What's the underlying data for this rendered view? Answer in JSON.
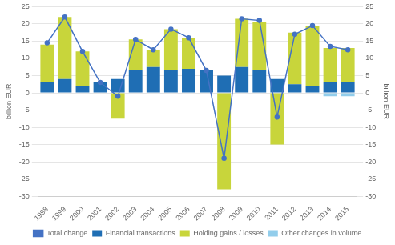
{
  "chart_data": {
    "type": "bar",
    "stacked": true,
    "categories": [
      "1998",
      "1999",
      "2000",
      "2001",
      "2002",
      "2003",
      "2004",
      "2005",
      "2006",
      "2007",
      "2008",
      "2009",
      "2010",
      "2011",
      "2012",
      "2013",
      "2014",
      "2015"
    ],
    "series": [
      {
        "name": "Financial transactions",
        "color": "#1f6eb4",
        "values": [
          3.0,
          4.0,
          2.0,
          3.0,
          4.0,
          6.5,
          7.5,
          6.5,
          7.0,
          6.5,
          5.0,
          7.5,
          6.5,
          4.0,
          2.5,
          2.0,
          3.0,
          3.0
        ]
      },
      {
        "name": "Holding gains / losses",
        "color": "#c8d53b",
        "values": [
          11.0,
          18.0,
          10.0,
          0.0,
          -7.5,
          9.0,
          5.0,
          12.0,
          9.0,
          0.0,
          -28.0,
          14.0,
          14.0,
          -15.0,
          15.0,
          17.5,
          10.0,
          10.0
        ]
      },
      {
        "name": "Other changes in volume",
        "color": "#92cdeb",
        "values": [
          0.0,
          0.0,
          0.0,
          0.0,
          0.0,
          0.0,
          0.0,
          0.0,
          0.0,
          0.0,
          0.0,
          0.0,
          0.0,
          0.0,
          0.0,
          0.0,
          -1.0,
          -1.0
        ]
      },
      {
        "name": "Total change",
        "type": "line",
        "color": "#4472c4",
        "marker": "circle",
        "values": [
          14.5,
          22.0,
          12.0,
          3.0,
          -1.0,
          15.5,
          12.5,
          18.5,
          16.0,
          6.5,
          -19.0,
          21.5,
          21.0,
          -7.0,
          17.0,
          19.5,
          13.5,
          12.5
        ]
      }
    ],
    "ylim": [
      -30,
      25
    ],
    "yticks": [
      -30,
      -25,
      -20,
      -15,
      -10,
      -5,
      0,
      5,
      10,
      15,
      20,
      25
    ],
    "y2lim": [
      -30,
      25
    ],
    "y2ticks": [
      -30,
      -25,
      -20,
      -15,
      -10,
      -5,
      0,
      5,
      10,
      15,
      20,
      25
    ],
    "ylabel": "billion EUR",
    "y2label": "billion EUR",
    "grid": true,
    "legend": "bottom"
  }
}
